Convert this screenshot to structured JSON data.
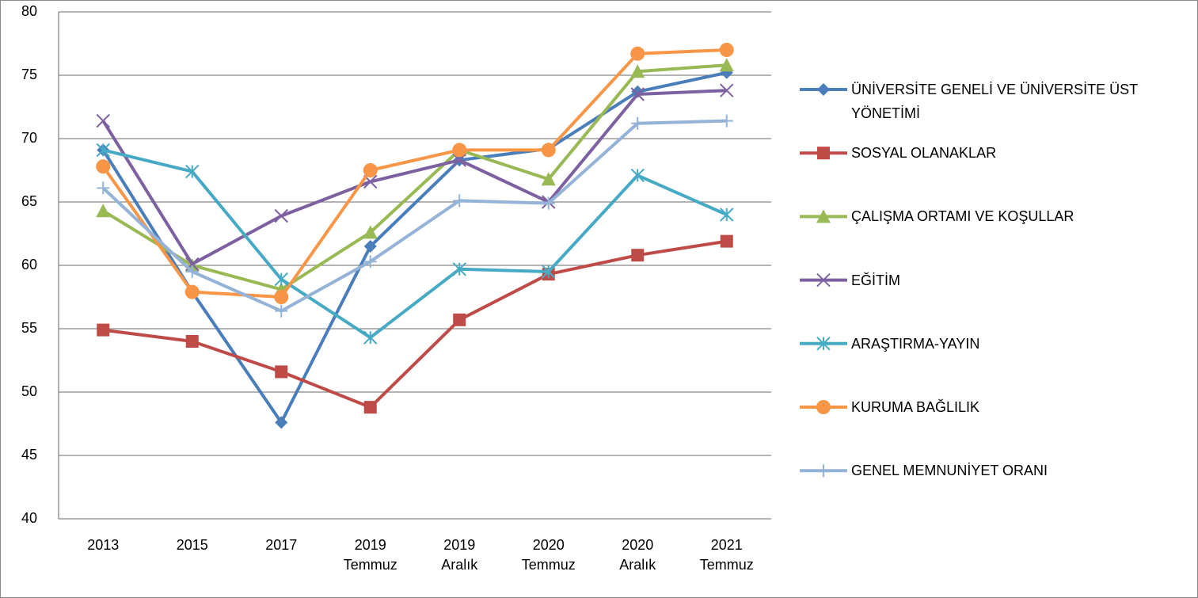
{
  "chart_data": {
    "type": "line",
    "categories": [
      "2013",
      "2015",
      "2017",
      "2019 Temmuz",
      "2019 Aralık",
      "2020 Temmuz",
      "2020 Aralık",
      "2021 Temmuz"
    ],
    "ylim": [
      40,
      80
    ],
    "yticks": [
      40,
      45,
      50,
      55,
      60,
      65,
      70,
      75,
      80
    ],
    "grid": true,
    "legend": "right",
    "series": [
      {
        "name": "ÜNİVERSİTE GENELİ VE ÜNİVERSİTE ÜST YÖNETİMİ",
        "color": "#4a7ebb",
        "marker": "diamond",
        "values": [
          69.1,
          57.9,
          47.6,
          61.5,
          68.3,
          69.2,
          73.7,
          75.2
        ]
      },
      {
        "name": "SOSYAL OLANAKLAR",
        "color": "#be4b48",
        "marker": "square",
        "values": [
          54.9,
          54.0,
          51.6,
          48.8,
          55.7,
          59.3,
          60.8,
          61.9
        ]
      },
      {
        "name": "ÇALIŞMA ORTAMI VE KOŞULLAR",
        "color": "#98b954",
        "marker": "triangle",
        "values": [
          64.3,
          60.0,
          58.1,
          62.6,
          69.1,
          66.8,
          75.3,
          75.8
        ]
      },
      {
        "name": "EĞİTİM",
        "color": "#7d60a0",
        "marker": "x",
        "values": [
          71.4,
          60.1,
          63.9,
          66.6,
          68.3,
          65.0,
          73.5,
          73.8
        ]
      },
      {
        "name": "ARAŞTIRMA-YAYIN",
        "color": "#46aac5",
        "marker": "asterisk",
        "values": [
          69.1,
          67.4,
          58.9,
          54.3,
          59.7,
          59.5,
          67.1,
          64.0
        ]
      },
      {
        "name": "KURUMA BAĞLILIK",
        "color": "#f79646",
        "marker": "circle",
        "values": [
          67.8,
          57.9,
          57.5,
          67.5,
          69.1,
          69.1,
          76.7,
          77.0
        ]
      },
      {
        "name": "GENEL MEMNUNİYET ORANI",
        "color": "#95b3d7",
        "marker": "plus",
        "values": [
          66.1,
          59.5,
          56.4,
          60.3,
          65.1,
          64.9,
          71.2,
          71.4
        ]
      }
    ]
  }
}
